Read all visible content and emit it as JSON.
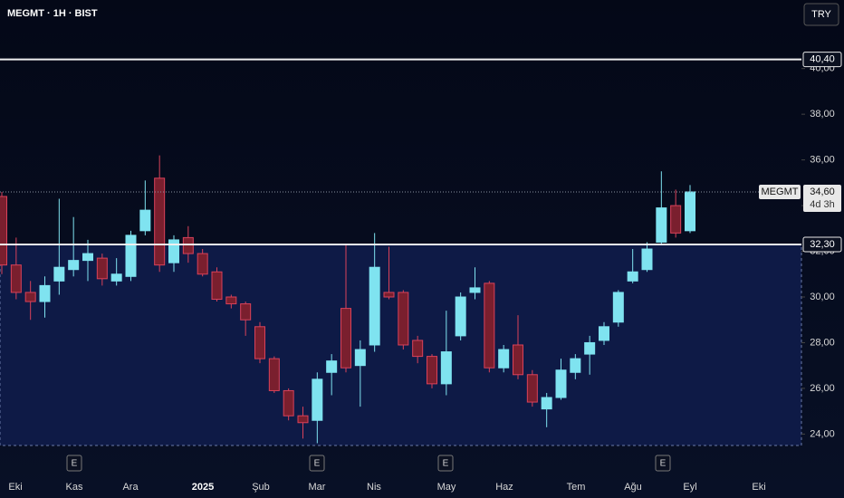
{
  "chart_data": {
    "type": "candlestick",
    "title": "MEGMT · 1H · BIST",
    "currency": "TRY",
    "symbol": "MEGMT",
    "up_color": "#7fe3f0",
    "down_color": "#7a1f2e",
    "open": [
      34.4,
      31.4,
      30.2,
      29.8,
      30.7,
      31.2,
      31.6,
      31.7,
      30.7,
      30.9,
      32.9,
      35.2,
      31.5,
      32.6,
      31.9,
      31.1,
      30.0,
      29.7,
      28.7,
      27.3,
      25.9,
      24.8,
      24.6,
      26.7,
      29.5,
      27.0,
      27.9,
      30.2,
      30.2,
      28.1,
      27.4,
      26.2,
      28.3,
      30.2,
      30.6,
      26.9,
      27.9,
      26.6,
      25.1,
      25.6,
      26.7,
      27.5,
      28.1,
      28.9,
      30.7,
      31.2,
      32.4,
      34.0,
      32.9
    ],
    "high": [
      34.6,
      32.6,
      30.7,
      30.9,
      34.3,
      33.5,
      32.5,
      31.9,
      31.7,
      32.9,
      35.1,
      36.2,
      32.7,
      33.1,
      32.1,
      31.3,
      30.1,
      29.8,
      28.9,
      27.4,
      26.0,
      25.2,
      26.7,
      27.5,
      32.3,
      28.1,
      32.8,
      32.2,
      30.3,
      28.3,
      27.5,
      29.4,
      30.2,
      31.3,
      30.7,
      27.9,
      29.2,
      26.8,
      25.8,
      27.3,
      27.5,
      28.3,
      28.9,
      30.3,
      32.1,
      32.4,
      35.5,
      34.7,
      34.9
    ],
    "low": [
      31.0,
      29.9,
      29.0,
      29.1,
      30.1,
      30.9,
      30.7,
      30.5,
      30.5,
      30.7,
      32.7,
      31.1,
      31.1,
      31.5,
      30.9,
      29.8,
      29.5,
      28.3,
      27.1,
      25.8,
      24.6,
      23.8,
      23.6,
      25.7,
      26.7,
      25.2,
      27.6,
      29.9,
      27.7,
      27.1,
      26.0,
      25.7,
      28.1,
      29.9,
      26.7,
      26.7,
      26.4,
      25.2,
      24.3,
      25.5,
      26.4,
      26.6,
      27.9,
      28.7,
      30.6,
      31.1,
      32.3,
      32.6,
      32.8
    ],
    "close": [
      31.4,
      30.2,
      29.8,
      30.5,
      31.3,
      31.6,
      31.9,
      30.8,
      31.0,
      32.7,
      33.8,
      31.4,
      32.5,
      31.9,
      31.0,
      29.9,
      29.7,
      29.0,
      27.3,
      25.9,
      24.8,
      24.5,
      26.4,
      27.2,
      26.9,
      27.7,
      31.3,
      30.0,
      27.9,
      27.4,
      26.2,
      27.6,
      30.0,
      30.4,
      26.9,
      27.7,
      26.6,
      25.4,
      25.6,
      26.8,
      27.3,
      28.0,
      28.7,
      30.2,
      31.1,
      32.1,
      33.9,
      32.8,
      34.6
    ],
    "ylim": [
      23.5,
      43.0
    ],
    "yticks": [
      {
        "value": 24,
        "label": "24,00"
      },
      {
        "value": 26,
        "label": "26,00"
      },
      {
        "value": 28,
        "label": "28,00"
      },
      {
        "value": 30,
        "label": "30,00"
      },
      {
        "value": 32,
        "label": "32,00"
      },
      {
        "value": 34,
        "label": "34,00"
      },
      {
        "value": 36,
        "label": "36,00"
      },
      {
        "value": 38,
        "label": "38,00"
      },
      {
        "value": 40,
        "label": "40,00"
      }
    ],
    "levels": [
      {
        "value": 40.4,
        "label": "40,40"
      },
      {
        "value": 32.3,
        "label": "32,30"
      }
    ],
    "last_price": {
      "value": 34.6,
      "label": "34,60",
      "countdown": "4d 3h"
    },
    "x_labels": [
      "Eki",
      "Kas",
      "Ara",
      "2025",
      "Şub",
      "Mar",
      "Nis",
      "May",
      "Haz",
      "Tem",
      "Ağu",
      "Eyl",
      "Eki"
    ],
    "events": [
      "E",
      "E",
      "E",
      "E"
    ]
  }
}
